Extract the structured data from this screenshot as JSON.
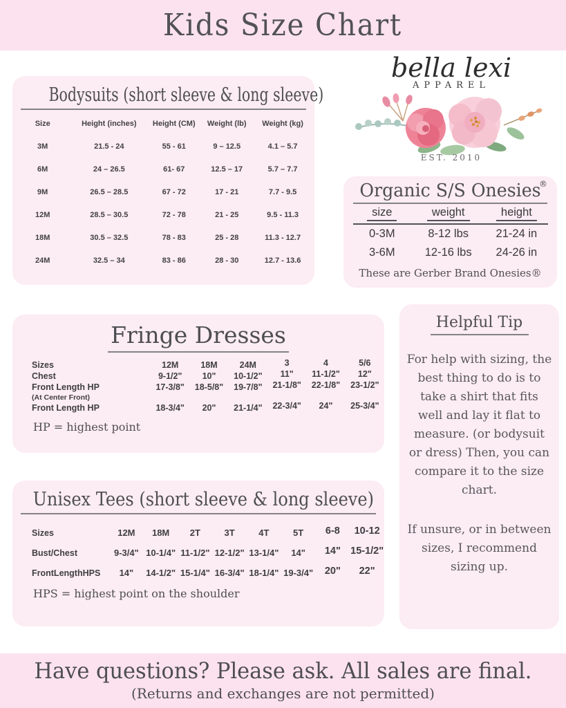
{
  "header": {
    "title": "Kids Size Chart"
  },
  "logo": {
    "script": "bella lexi",
    "subtitle": "APPAREL",
    "established": "EST. 2010"
  },
  "bodysuits": {
    "title": "Bodysuits (short sleeve & long sleeve)",
    "table": {
      "columns": [
        "Size",
        "Height (inches)",
        "Height (CM)",
        "Weight (lb)",
        "Weight (kg)"
      ],
      "rows": [
        [
          "3M",
          "21.5 - 24",
          "55 - 61",
          "9 – 12.5",
          "4.1 – 5.7"
        ],
        [
          "6M",
          "24 – 26.5",
          "61- 67",
          "12.5 – 17",
          "5.7 – 7.7"
        ],
        [
          "9M",
          "26.5 – 28.5",
          "67 - 72",
          "17 - 21",
          "7.7 - 9.5"
        ],
        [
          "12M",
          "28.5 – 30.5",
          "72 - 78",
          "21 - 25",
          "9.5 - 11.3"
        ],
        [
          "18M",
          "30.5 – 32.5",
          "78 - 83",
          "25 - 28",
          "11.3 - 12.7"
        ],
        [
          "24M",
          "32.5 – 34",
          "83 - 86",
          "28 - 30",
          "12.7 - 13.6"
        ]
      ]
    }
  },
  "onesies": {
    "title": "Organic S/S Onesies",
    "registered_mark": "®",
    "table": {
      "columns": [
        "size",
        "weight",
        "height"
      ],
      "rows": [
        [
          "0-3M",
          "8-12 lbs",
          "21-24 in"
        ],
        [
          "3-6M",
          "12-16 lbs",
          "24-26 in"
        ]
      ]
    },
    "note": "These are Gerber Brand Onesies®"
  },
  "fringe_dresses": {
    "title": "Fringe Dresses",
    "table": {
      "rows": [
        {
          "label": "Sizes",
          "values": [
            "12M",
            "18M",
            "24M",
            "3",
            "4",
            "5/6"
          ]
        },
        {
          "label": "Chest",
          "values": [
            "9-1/2\"",
            "10\"",
            "10-1/2\"",
            "11\"",
            "11-1/2\"",
            "12\""
          ]
        },
        {
          "label": "Front Length HP",
          "sublabel": "(At Center Front)",
          "values": [
            "17-3/8\"",
            "18-5/8\"",
            "19-7/8\"",
            "21-1/8\"",
            "22-1/8\"",
            "23-1/2\""
          ]
        },
        {
          "label": "Front Length HP",
          "values": [
            "18-3/4\"",
            "20\"",
            "21-1/4\"",
            "22-3/4\"",
            "24\"",
            "25-3/4\""
          ]
        }
      ]
    },
    "footnote": "HP = highest point"
  },
  "unisex_tees": {
    "title": "Unisex Tees (short sleeve & long sleeve)",
    "table": {
      "rows": [
        {
          "label": "Sizes",
          "values": [
            "12M",
            "18M",
            "2T",
            "3T",
            "4T",
            "5T",
            "6-8",
            "10-12"
          ]
        },
        {
          "label": "Bust/Chest",
          "values": [
            "9-3/4\"",
            "10-1/4\"",
            "11-1/2\"",
            "12-1/2\"",
            "13-1/4\"",
            "14\"",
            "14\"",
            "15-1/2\""
          ]
        },
        {
          "label": "FrontLengthHPS",
          "values": [
            "14\"",
            "14-1/2\"",
            "15-1/4\"",
            "16-3/4\"",
            "18-1/4\"",
            "19-3/4\"",
            "20\"",
            "22\""
          ]
        }
      ]
    },
    "footnote": "HPS = highest point on the shoulder"
  },
  "helpful_tip": {
    "title": "Helpful Tip",
    "paragraphs": [
      "For help with sizing, the best thing to do is to take a shirt that fits well and lay it flat to measure. (or bodysuit or dress) Then, you can compare it to the size chart.",
      "If unsure, or in between sizes, I recommend sizing up."
    ]
  },
  "footer": {
    "line1": "Have questions? Please ask. All sales are final.",
    "line2": "(Returns and exchanges are not permitted)"
  },
  "colors": {
    "bar_pink": "#fbe2ee",
    "panel_pink": "#fcecf3",
    "text_dark": "#4e4e50"
  }
}
